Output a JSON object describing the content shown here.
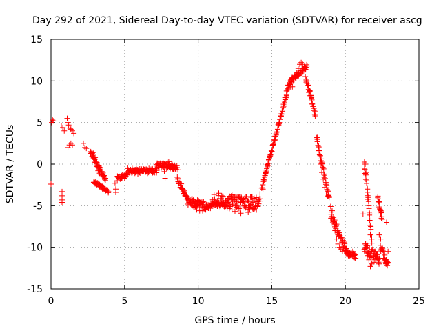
{
  "chart_data": {
    "type": "scatter",
    "title": "Day 292 of 2021, Sidereal Day-to-day VTEC variation (SDTVAR) for receiver ascg",
    "xlabel": "GPS time / hours",
    "ylabel": "SDTVAR / TECUs",
    "xlim": [
      0,
      25
    ],
    "ylim": [
      -15,
      15
    ],
    "x_ticks": [
      0,
      5,
      10,
      15,
      20,
      25
    ],
    "y_ticks": [
      -15,
      -10,
      -5,
      0,
      5,
      10,
      15
    ],
    "x_tick_labels": [
      "0",
      "5",
      "10",
      "15",
      "20",
      "25"
    ],
    "y_tick_labels": [
      "-15",
      "-10",
      "-5",
      "0",
      "5",
      "10",
      "15"
    ],
    "grid": true,
    "marker": "+",
    "color": "#ff0000",
    "series": [
      {
        "name": "SDTVAR",
        "points": [
          [
            0.0,
            -2.4
          ],
          [
            0.05,
            5.0
          ],
          [
            0.1,
            5.3
          ],
          [
            0.15,
            5.2
          ],
          [
            0.7,
            4.6
          ],
          [
            0.75,
            -3.3
          ],
          [
            0.75,
            -3.8
          ],
          [
            0.75,
            -4.3
          ],
          [
            0.75,
            -4.6
          ],
          [
            0.8,
            4.4
          ],
          [
            0.9,
            4.0
          ],
          [
            1.1,
            5.5
          ],
          [
            1.15,
            5.0
          ],
          [
            1.2,
            4.7
          ],
          [
            1.3,
            4.3
          ],
          [
            1.35,
            4.2
          ],
          [
            1.45,
            4.0
          ],
          [
            1.55,
            3.7
          ],
          [
            1.15,
            2.0
          ],
          [
            1.25,
            2.3
          ],
          [
            1.35,
            2.5
          ],
          [
            1.45,
            2.3
          ],
          [
            2.2,
            2.5
          ],
          [
            2.3,
            2.0
          ],
          [
            2.4,
            1.9
          ],
          [
            2.7,
            1.5
          ],
          [
            2.8,
            1.3
          ],
          [
            2.9,
            1.4
          ],
          [
            3.0,
            0.8
          ],
          [
            3.0,
            0.2
          ],
          [
            3.1,
            -0.3
          ],
          [
            3.2,
            -0.8
          ],
          [
            3.3,
            -1.1
          ],
          [
            3.4,
            -1.3
          ],
          [
            3.5,
            -1.4
          ],
          [
            3.6,
            -1.5
          ],
          [
            3.7,
            -1.7
          ],
          [
            2.9,
            -2.2
          ],
          [
            3.0,
            -2.3
          ],
          [
            3.1,
            -2.5
          ],
          [
            3.3,
            -2.7
          ],
          [
            3.5,
            -3.0
          ],
          [
            3.7,
            -3.2
          ],
          [
            3.9,
            -3.3
          ],
          [
            4.35,
            -2.3
          ],
          [
            4.4,
            -3.0
          ],
          [
            4.4,
            -3.4
          ],
          [
            4.5,
            -2.0
          ],
          [
            4.6,
            -1.6
          ],
          [
            4.7,
            -1.8
          ],
          [
            4.8,
            -1.7
          ],
          [
            5.0,
            -1.7
          ],
          [
            5.1,
            -1.5
          ],
          [
            5.2,
            -1.3
          ],
          [
            5.3,
            -0.8
          ],
          [
            5.5,
            -0.9
          ],
          [
            5.7,
            -1.1
          ],
          [
            5.9,
            -1.2
          ],
          [
            6.1,
            -0.9
          ],
          [
            6.3,
            -0.6
          ],
          [
            6.5,
            -0.9
          ],
          [
            6.7,
            -0.8
          ],
          [
            6.9,
            -0.6
          ],
          [
            7.1,
            -0.7
          ],
          [
            7.3,
            -0.2
          ],
          [
            7.4,
            0.0
          ],
          [
            7.6,
            -0.3
          ],
          [
            7.7,
            -0.9
          ],
          [
            7.75,
            -1.7
          ],
          [
            7.9,
            0.2
          ],
          [
            8.0,
            0.3
          ],
          [
            8.2,
            0.1
          ],
          [
            8.4,
            -0.2
          ],
          [
            8.5,
            -0.6
          ],
          [
            8.6,
            -1.8
          ],
          [
            8.7,
            -2.3
          ],
          [
            8.8,
            -2.6
          ],
          [
            8.9,
            -2.9
          ],
          [
            9.0,
            -3.3
          ],
          [
            9.1,
            -3.8
          ],
          [
            9.2,
            -4.2
          ],
          [
            9.3,
            -4.3
          ],
          [
            9.4,
            -4.6
          ],
          [
            9.5,
            -4.8
          ],
          [
            9.7,
            -5.2
          ],
          [
            9.9,
            -5.5
          ],
          [
            10.1,
            -5.6
          ],
          [
            10.3,
            -5.6
          ],
          [
            10.5,
            -5.5
          ],
          [
            10.7,
            -5.3
          ],
          [
            10.9,
            -5.0
          ],
          [
            11.1,
            -4.6
          ],
          [
            11.3,
            -4.4
          ],
          [
            11.5,
            -4.2
          ],
          [
            11.7,
            -4.8
          ],
          [
            11.9,
            -5.0
          ],
          [
            12.1,
            -4.9
          ],
          [
            12.3,
            -5.5
          ],
          [
            12.5,
            -5.7
          ],
          [
            12.7,
            -5.3
          ],
          [
            12.9,
            -5.9
          ],
          [
            11.4,
            -3.5
          ],
          [
            11.6,
            -3.8
          ],
          [
            12.0,
            -4.3
          ],
          [
            12.3,
            -3.7
          ],
          [
            12.6,
            -4.0
          ],
          [
            12.9,
            -4.6
          ],
          [
            13.2,
            -4.2
          ],
          [
            13.4,
            -5.8
          ],
          [
            13.6,
            -3.9
          ],
          [
            13.8,
            -4.1
          ],
          [
            14.0,
            -4.5
          ],
          [
            14.2,
            -3.6
          ],
          [
            14.4,
            -3.0
          ],
          [
            14.5,
            -2.0
          ],
          [
            14.6,
            -1.0
          ],
          [
            14.7,
            0.0
          ],
          [
            14.8,
            0.5
          ],
          [
            14.9,
            1.0
          ],
          [
            15.0,
            1.5
          ],
          [
            15.1,
            2.2
          ],
          [
            15.2,
            2.8
          ],
          [
            15.3,
            3.5
          ],
          [
            15.4,
            4.2
          ],
          [
            15.5,
            5.0
          ],
          [
            15.6,
            5.8
          ],
          [
            15.7,
            6.5
          ],
          [
            15.8,
            7.2
          ],
          [
            15.9,
            8.0
          ],
          [
            16.0,
            8.8
          ],
          [
            16.1,
            9.5
          ],
          [
            16.2,
            9.8
          ],
          [
            16.3,
            9.9
          ],
          [
            16.4,
            9.3
          ],
          [
            16.5,
            10.0
          ],
          [
            16.6,
            10.5
          ],
          [
            16.7,
            11.0
          ],
          [
            16.8,
            11.5
          ],
          [
            16.9,
            12.0
          ],
          [
            17.0,
            12.2
          ],
          [
            17.1,
            12.0
          ],
          [
            17.2,
            11.6
          ],
          [
            17.3,
            11.4
          ],
          [
            17.4,
            10.0
          ],
          [
            17.5,
            9.5
          ],
          [
            17.6,
            8.8
          ],
          [
            17.7,
            8.0
          ],
          [
            17.8,
            7.0
          ],
          [
            17.9,
            6.0
          ],
          [
            17.95,
            5.8
          ],
          [
            18.1,
            3.2
          ],
          [
            18.2,
            2.0
          ],
          [
            18.3,
            1.0
          ],
          [
            18.35,
            0.0
          ],
          [
            18.4,
            -1.0
          ],
          [
            18.5,
            -1.8
          ],
          [
            18.6,
            -2.8
          ],
          [
            18.7,
            -3.6
          ],
          [
            18.8,
            -3.9
          ],
          [
            18.9,
            -4.0
          ],
          [
            19.0,
            -5.1
          ],
          [
            19.1,
            -5.6
          ],
          [
            19.2,
            -6.4
          ],
          [
            19.25,
            -7.2
          ],
          [
            19.3,
            -8.0
          ],
          [
            19.4,
            -9.0
          ],
          [
            19.5,
            -9.6
          ],
          [
            19.6,
            -10.0
          ],
          [
            19.7,
            -10.2
          ],
          [
            19.8,
            -10.5
          ],
          [
            19.9,
            -10.0
          ],
          [
            20.0,
            -10.4
          ],
          [
            20.1,
            -10.8
          ],
          [
            20.2,
            -11.0
          ],
          [
            20.3,
            -11.0
          ],
          [
            20.4,
            -10.8
          ],
          [
            20.5,
            -10.5
          ],
          [
            20.6,
            -11.2
          ],
          [
            21.2,
            -6.0
          ],
          [
            21.3,
            -0.5
          ],
          [
            21.35,
            0.0
          ],
          [
            21.4,
            -1.0
          ],
          [
            21.45,
            -2.0
          ],
          [
            21.5,
            -3.0
          ],
          [
            21.55,
            -4.0
          ],
          [
            21.6,
            -5.0
          ],
          [
            21.65,
            -6.0
          ],
          [
            21.7,
            -8.5
          ],
          [
            21.8,
            -9.5
          ],
          [
            21.3,
            -10.5
          ],
          [
            21.4,
            -10.0
          ],
          [
            21.5,
            -11.0
          ],
          [
            21.6,
            -11.5
          ],
          [
            21.7,
            -12.3
          ],
          [
            21.8,
            -12.0
          ],
          [
            21.9,
            -11.8
          ],
          [
            22.0,
            -11.5
          ],
          [
            22.1,
            -10.8
          ],
          [
            22.2,
            -11.2
          ],
          [
            22.2,
            -4.0
          ],
          [
            22.3,
            -4.5
          ],
          [
            22.35,
            -5.5
          ],
          [
            22.4,
            -6.0
          ],
          [
            22.45,
            -6.5
          ],
          [
            22.3,
            -8.5
          ],
          [
            22.4,
            -9.0
          ],
          [
            22.5,
            -10.0
          ],
          [
            22.6,
            -10.5
          ],
          [
            22.7,
            -11.5
          ],
          [
            22.8,
            -12.0
          ],
          [
            22.85,
            -12.2
          ],
          [
            22.8,
            -7.0
          ],
          [
            22.9,
            -10.5
          ]
        ],
        "segments": [
          {
            "x0": 4.5,
            "x1": 5.2,
            "y0": -1.6,
            "y1": -1.3,
            "spread": 0.5
          },
          {
            "x0": 5.2,
            "x1": 7.2,
            "y0": -0.8,
            "y1": -0.8,
            "spread": 0.6
          },
          {
            "x0": 7.2,
            "x1": 8.6,
            "y0": -0.1,
            "y1": -0.4,
            "spread": 0.6
          },
          {
            "x0": 8.6,
            "x1": 9.3,
            "y0": -1.8,
            "y1": -4.3,
            "spread": 0.6
          },
          {
            "x0": 9.3,
            "x1": 11.0,
            "y0": -4.5,
            "y1": -5.2,
            "spread": 0.9
          },
          {
            "x0": 11.0,
            "x1": 14.2,
            "y0": -4.4,
            "y1": -4.8,
            "spread": 1.6
          },
          {
            "x0": 14.3,
            "x1": 16.2,
            "y0": -3.0,
            "y1": 9.6,
            "spread": 0.5
          },
          {
            "x0": 16.2,
            "x1": 17.4,
            "y0": 9.8,
            "y1": 11.8,
            "spread": 0.6
          },
          {
            "x0": 17.3,
            "x1": 17.95,
            "y0": 10.5,
            "y1": 6.0,
            "spread": 0.6
          },
          {
            "x0": 18.05,
            "x1": 18.9,
            "y0": 3.0,
            "y1": -4.0,
            "spread": 0.6
          },
          {
            "x0": 19.0,
            "x1": 20.1,
            "y0": -6.0,
            "y1": -10.6,
            "spread": 1.0
          },
          {
            "x0": 20.1,
            "x1": 20.7,
            "y0": -10.6,
            "y1": -11.1,
            "spread": 0.5
          },
          {
            "x0": 21.3,
            "x1": 21.8,
            "y0": 0.0,
            "y1": -9.0,
            "spread": 0.6
          },
          {
            "x0": 21.3,
            "x1": 22.3,
            "y0": -10.0,
            "y1": -11.5,
            "spread": 1.2
          },
          {
            "x0": 22.2,
            "x1": 22.5,
            "y0": -4.0,
            "y1": -6.5,
            "spread": 0.5
          },
          {
            "x0": 22.4,
            "x1": 22.9,
            "y0": -10.0,
            "y1": -12.2,
            "spread": 0.8
          },
          {
            "x0": 2.9,
            "x1": 3.9,
            "y0": -2.1,
            "y1": -3.3,
            "spread": 0.3
          },
          {
            "x0": 2.7,
            "x1": 3.7,
            "y0": 1.4,
            "y1": -1.8,
            "spread": 0.4
          }
        ]
      }
    ]
  }
}
